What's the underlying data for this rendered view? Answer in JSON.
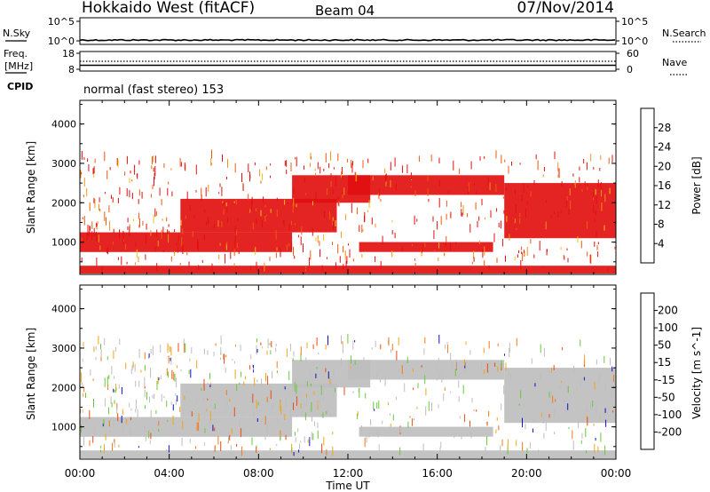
{
  "header": {
    "radar": "Hokkaido West (fitACF)",
    "beam": "Beam 04",
    "date": "07/Nov/2014"
  },
  "noise_panel": {
    "left_label": "N.Sky",
    "right_label": "N.Search",
    "ticks": [
      "10^5",
      "10^0"
    ],
    "sky_value_log": 0.2
  },
  "freq_panel": {
    "left_label_1": "Freq.",
    "left_label_2": "[MHz]",
    "left_ticks": [
      "18",
      "8"
    ],
    "right_label": "Nave",
    "right_ticks": [
      "60",
      "0"
    ],
    "freq_mhz": 10.5,
    "nave": 30
  },
  "cpid": {
    "label": "CPID",
    "text": "normal (fast stereo) 153"
  },
  "time_axis": {
    "label": "Time UT",
    "ticks": [
      "00:00",
      "04:00",
      "08:00",
      "12:00",
      "16:00",
      "20:00",
      "00:00"
    ],
    "range_hours": [
      0,
      24
    ]
  },
  "range_axis": {
    "label": "Slant Range [km]",
    "ticks": [
      "1000",
      "2000",
      "3000",
      "4000"
    ],
    "range_km": [
      180,
      4600
    ]
  },
  "chart_data": [
    {
      "type": "heatmap",
      "name": "power",
      "colorbar_label": "Power [dB]",
      "colorbar_ticks": [
        "4",
        "8",
        "12",
        "16",
        "20",
        "24",
        "28"
      ],
      "colors": [
        "#1010e0",
        "#2c5aa0",
        "#3a8a5a",
        "#5ec23c",
        "#f2c21a",
        "#f5921a",
        "#f05a10",
        "#e21010"
      ],
      "bands": [
        {
          "t_start": 0.0,
          "t_end": 9.5,
          "r_low": 750,
          "r_high": 1250
        },
        {
          "t_start": 4.5,
          "t_end": 11.5,
          "r_low": 1250,
          "r_high": 2100
        },
        {
          "t_start": 9.5,
          "t_end": 13.0,
          "r_low": 2000,
          "r_high": 2700
        },
        {
          "t_start": 12.0,
          "t_end": 19.0,
          "r_low": 2200,
          "r_high": 2700
        },
        {
          "t_start": 19.0,
          "t_end": 24.0,
          "r_low": 1100,
          "r_high": 2500
        },
        {
          "t_start": 12.5,
          "t_end": 18.5,
          "r_low": 750,
          "r_high": 1000
        },
        {
          "t_start": 0.0,
          "t_end": 24.0,
          "r_low": 200,
          "r_high": 400
        }
      ]
    },
    {
      "type": "heatmap",
      "name": "velocity",
      "colorbar_label": "Velocity [m s^-1]",
      "colorbar_ticks": [
        "200",
        "100",
        "50",
        "15",
        "-15",
        "-50",
        "-100",
        "-200"
      ],
      "colors": [
        "#1010c8",
        "#2c5aa0",
        "#3a8a5a",
        "#6ac83a",
        "#bebebe",
        "#f5a418",
        "#f57a18",
        "#f04a10",
        "#e21010"
      ],
      "bands": [
        {
          "t_start": 0.0,
          "t_end": 9.5,
          "r_low": 750,
          "r_high": 1250
        },
        {
          "t_start": 4.5,
          "t_end": 11.5,
          "r_low": 1250,
          "r_high": 2100
        },
        {
          "t_start": 9.5,
          "t_end": 13.0,
          "r_low": 2000,
          "r_high": 2700
        },
        {
          "t_start": 12.0,
          "t_end": 19.0,
          "r_low": 2200,
          "r_high": 2700
        },
        {
          "t_start": 19.0,
          "t_end": 24.0,
          "r_low": 1100,
          "r_high": 2500
        },
        {
          "t_start": 12.5,
          "t_end": 18.5,
          "r_low": 750,
          "r_high": 1000
        },
        {
          "t_start": 0.0,
          "t_end": 24.0,
          "r_low": 200,
          "r_high": 400
        }
      ]
    }
  ]
}
